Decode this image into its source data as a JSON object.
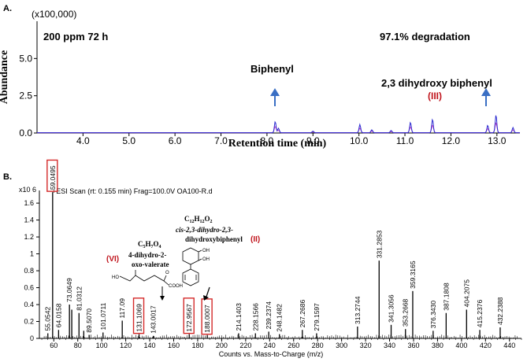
{
  "panel_a": {
    "label": "A.",
    "scale": "(x100,000)",
    "ylabel": "Abundance",
    "xlabel": "Retention time (min)",
    "condition": "200 ppm 72 h",
    "degradation": "97.1% degradation",
    "biphenyl_label": "Biphenyl",
    "product_label": "2,3 dihydroxy biphenyl",
    "product_id": "(III)"
  },
  "panel_b": {
    "label": "B.",
    "scale": "x10 6",
    "scan_info": "+ESI Scan (rt: 0.155 min) Frag=100.0V OA100-R.d",
    "xlabel": "Counts vs. Mass-to-Charge (m/z)",
    "vi_formula": "C5H7O4",
    "vi_name_1": "4-dihydro-2-",
    "vi_name_2": "oxo-valerate",
    "vi_id": "(VI)",
    "ii_formula": "C12H12O2",
    "ii_name_1": "cis-2,3-dihydro-2,3-",
    "ii_name_2": "dihydroxybiphenyl",
    "ii_id": "(II)",
    "oh_label": "OH",
    "ho_label": "HO",
    "o_label": "O",
    "cooh_label": "COOH"
  },
  "colors": {
    "arrow": "#3a6fc4",
    "highlight_box": "#d42a2a",
    "compound_id": "#c0141c",
    "trace_blue": "#2a2ad0",
    "trace_magenta": "#d040c0"
  },
  "chart_data": [
    {
      "type": "line",
      "title": "200 ppm 72 h",
      "xlabel": "Retention time (min)",
      "ylabel": "Abundance",
      "xlim": [
        3.0,
        13.5
      ],
      "ylim": [
        0,
        7.5
      ],
      "x_ticks": [
        "4.0",
        "5.0",
        "6.0",
        "7.0",
        "8.0",
        "9.0",
        "10.0",
        "11.0",
        "12.0",
        "13.0"
      ],
      "y_ticks": [
        "0.0",
        "2.5",
        "5.0"
      ],
      "peaks": [
        {
          "rt": 8.18,
          "height": 0.75
        },
        {
          "rt": 8.25,
          "height": 0.3
        },
        {
          "rt": 9.0,
          "height": 0.1
        },
        {
          "rt": 10.02,
          "height": 0.55
        },
        {
          "rt": 10.28,
          "height": 0.2
        },
        {
          "rt": 10.7,
          "height": 0.15
        },
        {
          "rt": 11.12,
          "height": 0.7
        },
        {
          "rt": 11.6,
          "height": 0.9
        },
        {
          "rt": 12.8,
          "height": 0.5
        },
        {
          "rt": 12.98,
          "height": 1.2
        },
        {
          "rt": 13.35,
          "height": 0.35
        }
      ]
    },
    {
      "type": "bar",
      "title": "+ESI Scan (rt: 0.155 min) Frag=100.0V OA100-R.d",
      "xlabel": "Counts vs. Mass-to-Charge (m/z)",
      "ylabel": "x10 6",
      "xlim": [
        48,
        450
      ],
      "ylim": [
        0,
        1.75
      ],
      "x_ticks": [
        "60",
        "80",
        "100",
        "120",
        "140",
        "160",
        "180",
        "200",
        "220",
        "240",
        "260",
        "280",
        "300",
        "320",
        "340",
        "360",
        "380",
        "400",
        "420",
        "440"
      ],
      "y_ticks": [
        "0",
        "0.2",
        "0.4",
        "0.6",
        "0.8",
        "1",
        "1.2",
        "1.4",
        "1.6"
      ],
      "peaks": [
        {
          "mz": 55.0542,
          "intensity": 0.06,
          "label": "55.0542"
        },
        {
          "mz": 59.0495,
          "intensity": 1.73,
          "label": "59.0495"
        },
        {
          "mz": 64.0158,
          "intensity": 0.1,
          "label": "64.0158"
        },
        {
          "mz": 73.0649,
          "intensity": 0.4,
          "label": "73.0649"
        },
        {
          "mz": 75.0,
          "intensity": 0.34
        },
        {
          "mz": 81.0312,
          "intensity": 0.3,
          "label": "81.0312"
        },
        {
          "mz": 85.0,
          "intensity": 0.09
        },
        {
          "mz": 89.507,
          "intensity": 0.04,
          "label": "89.5070"
        },
        {
          "mz": 101.0711,
          "intensity": 0.07,
          "label": "101.0711"
        },
        {
          "mz": 117.09,
          "intensity": 0.21,
          "label": "117.09"
        },
        {
          "mz": 131.1069,
          "intensity": 0.05,
          "label": "131.1069"
        },
        {
          "mz": 143.0017,
          "intensity": 0.03,
          "label": "143.0017"
        },
        {
          "mz": 172.9567,
          "intensity": 0.05,
          "label": "172.9567"
        },
        {
          "mz": 188.0007,
          "intensity": 0.04,
          "label": "188.0007"
        },
        {
          "mz": 214.1403,
          "intensity": 0.06,
          "label": "214.1403"
        },
        {
          "mz": 228.1566,
          "intensity": 0.06,
          "label": "228.1566"
        },
        {
          "mz": 239.2374,
          "intensity": 0.08,
          "label": "239.2374"
        },
        {
          "mz": 248.1482,
          "intensity": 0.05,
          "label": "248.1482"
        },
        {
          "mz": 267.2686,
          "intensity": 0.1,
          "label": "267.2686"
        },
        {
          "mz": 279.1597,
          "intensity": 0.06,
          "label": "279.1597"
        },
        {
          "mz": 313.2744,
          "intensity": 0.14,
          "label": "313.2744"
        },
        {
          "mz": 331.2853,
          "intensity": 0.92,
          "label": "331.2853"
        },
        {
          "mz": 341.3056,
          "intensity": 0.16,
          "label": "341.3056"
        },
        {
          "mz": 353.2668,
          "intensity": 0.11,
          "label": "353.2668"
        },
        {
          "mz": 359.3165,
          "intensity": 0.56,
          "label": "359.3165"
        },
        {
          "mz": 376.343,
          "intensity": 0.09,
          "label": "376.3430"
        },
        {
          "mz": 387.1808,
          "intensity": 0.3,
          "label": "387.1808"
        },
        {
          "mz": 404.2075,
          "intensity": 0.34,
          "label": "404.2075"
        },
        {
          "mz": 415.2376,
          "intensity": 0.1,
          "label": "415.2376"
        },
        {
          "mz": 432.2388,
          "intensity": 0.13,
          "label": "432.2388"
        }
      ],
      "highlighted": [
        "59.0495",
        "131.1069",
        "172.9567",
        "188.0007"
      ]
    }
  ]
}
